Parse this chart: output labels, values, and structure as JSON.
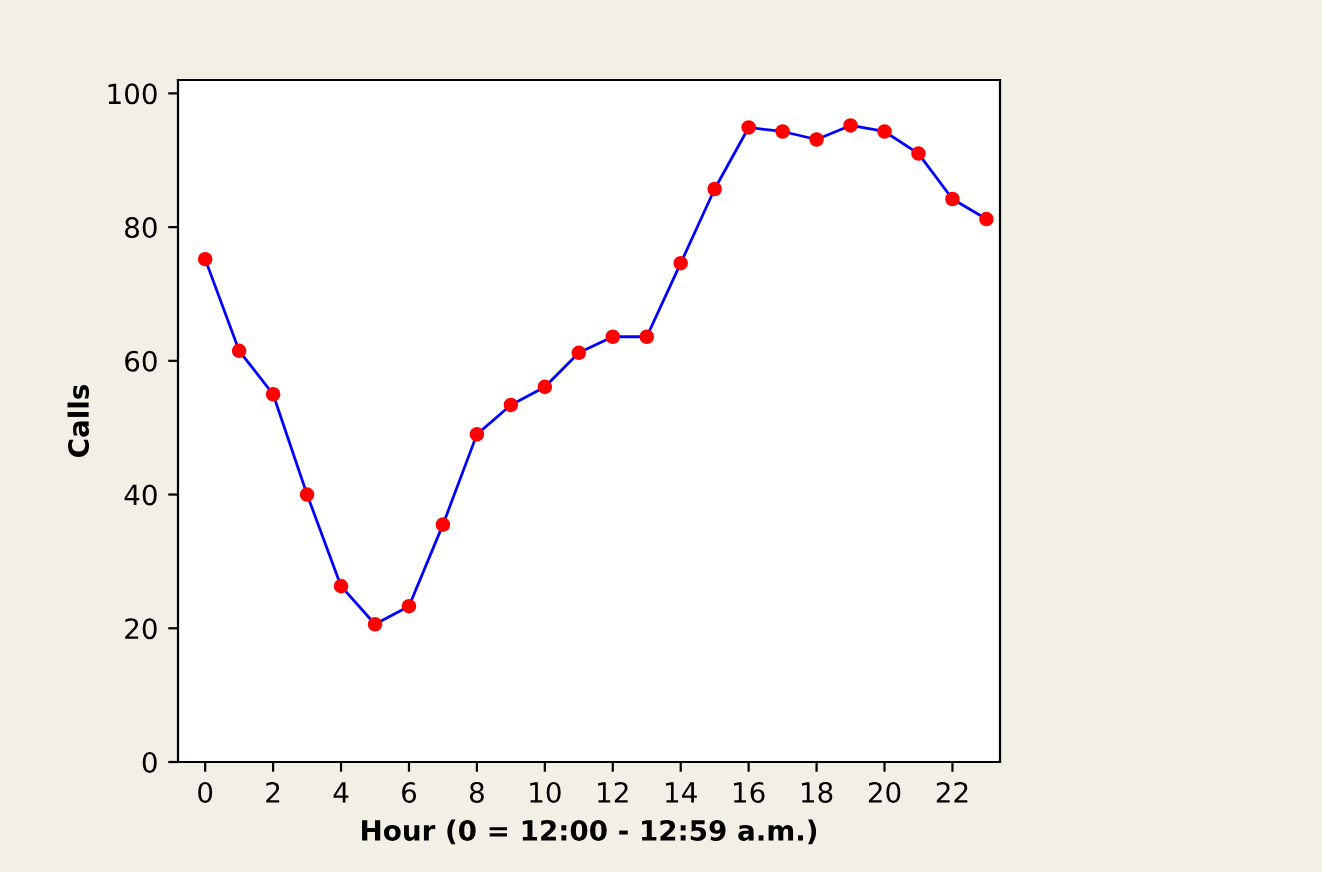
{
  "chart_data": {
    "type": "line",
    "xlabel": "Hour (0 = 12:00 - 12:59 a.m.)",
    "ylabel": "Calls",
    "x": [
      0,
      1,
      2,
      3,
      4,
      5,
      6,
      7,
      8,
      9,
      10,
      11,
      12,
      13,
      14,
      15,
      16,
      17,
      18,
      19,
      20,
      21,
      22,
      23
    ],
    "series": [
      {
        "color": "#0000ff",
        "values": [
          75.2,
          61.5,
          55,
          40,
          26.3,
          20.6,
          23.3,
          35.5,
          49,
          53.4,
          56.1,
          61.2,
          63.6,
          63.6,
          74.6,
          85.7,
          94.9,
          94.3,
          93.1,
          95.2,
          94.3,
          91,
          84.2,
          81.2
        ]
      }
    ],
    "marker": "circle",
    "line_style": "solid",
    "xlim": [
      -0.8,
      23.4
    ],
    "ylim": [
      0,
      102
    ],
    "xticks": [
      0,
      2,
      4,
      6,
      8,
      10,
      12,
      14,
      16,
      18,
      20,
      22
    ],
    "yticks": [
      0,
      20,
      40,
      60,
      80,
      100
    ],
    "grid": false
  }
}
